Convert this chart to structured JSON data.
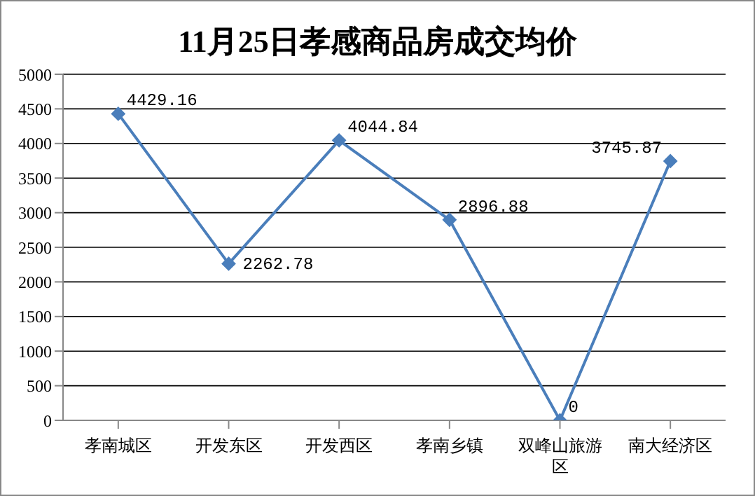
{
  "chart_data": {
    "type": "line",
    "title": "11月25日孝感商品房成交均价",
    "categories": [
      "孝南城区",
      "开发东区",
      "开发西区",
      "孝南乡镇",
      "双峰山旅游区",
      "南大经济区"
    ],
    "values": [
      4429.16,
      2262.78,
      4044.84,
      2896.88,
      0,
      3745.87
    ],
    "color": "#4a7ebb",
    "marker": "diamond",
    "data_labels": true,
    "grid": "y",
    "ylim": [
      0,
      5000
    ],
    "yticks": [
      0,
      500,
      1000,
      1500,
      2000,
      2500,
      3000,
      3500,
      4000,
      4500,
      5000
    ]
  }
}
